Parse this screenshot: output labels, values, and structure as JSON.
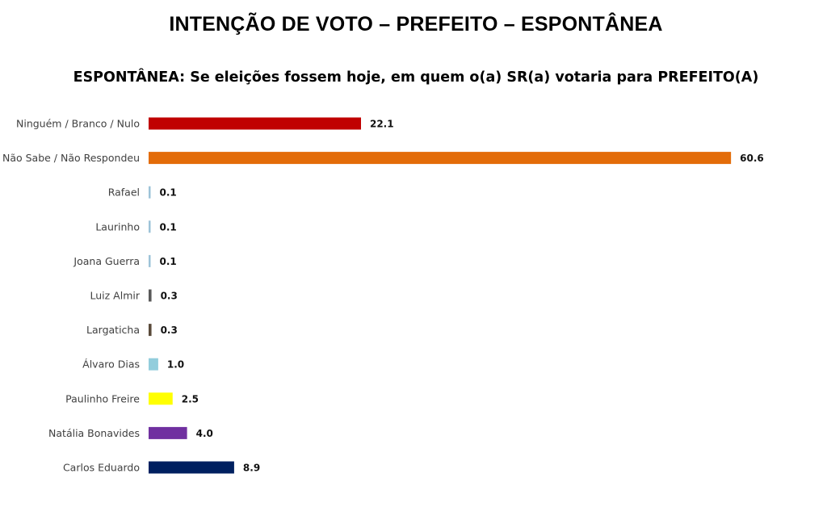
{
  "title": "INTENÇÃO DE VOTO – PREFEITO – ESPONTÂNEA",
  "subtitle": "ESPONTÂNEA: Se eleições fossem hoje, em quem o(a) SR(a) votaria para PREFEITO(A)",
  "chart_data": {
    "type": "bar",
    "orientation": "horizontal",
    "title": "INTENÇÃO DE VOTO – PREFEITO – ESPONTÂNEA",
    "subtitle": "ESPONTÂNEA: Se eleições fossem hoje, em quem o(a) SR(a) votaria para PREFEITO(A)",
    "categories": [
      "Ninguém / Branco / Nulo",
      "Não Sabe / Não Respondeu",
      "Rafael",
      "Laurinho",
      "Joana Guerra",
      "Luiz Almir",
      "Largaticha",
      "Álvaro Dias",
      "Paulinho Freire",
      "Natália Bonavides",
      "Carlos Eduardo"
    ],
    "values": [
      22.1,
      60.6,
      0.1,
      0.1,
      0.1,
      0.3,
      0.3,
      1.0,
      2.5,
      4.0,
      8.9
    ],
    "value_labels": [
      "22.1",
      "60.6",
      "0.1",
      "0.1",
      "0.1",
      "0.3",
      "0.3",
      "1.0",
      "2.5",
      "4.0",
      "8.9"
    ],
    "colors": [
      "#c00000",
      "#e36c09",
      "#9dc3d8",
      "#9dc3d8",
      "#9dc3d8",
      "#595959",
      "#5a4a3a",
      "#92cddc",
      "#ffff00",
      "#7030a0",
      "#002060"
    ],
    "xlim": [
      0,
      62
    ],
    "grid": false,
    "legend": "none"
  }
}
